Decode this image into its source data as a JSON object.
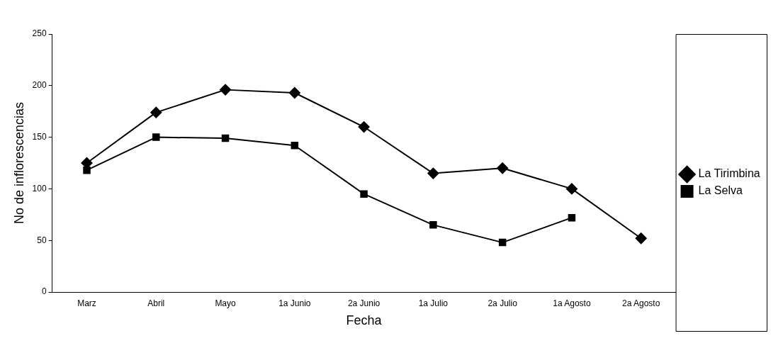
{
  "chart_data": {
    "type": "line",
    "xlabel": "Fecha",
    "ylabel": "No de inflorescencias",
    "categories": [
      "Marz",
      "Abril",
      "Mayo",
      "1a Junio",
      "2a Junio",
      "1a Julio",
      "2a Julio",
      "1a Agosto",
      "2a Agosto"
    ],
    "series": [
      {
        "name": "La Tirimbina",
        "color": "#000000",
        "marker": "diamond",
        "values": [
          125,
          174,
          196,
          193,
          160,
          115,
          120,
          100,
          52
        ]
      },
      {
        "name": "La Selva",
        "color": "#000000",
        "marker": "square",
        "values": [
          118,
          150,
          149,
          142,
          95,
          65,
          48,
          72,
          null
        ]
      }
    ],
    "ylim": [
      0,
      250
    ],
    "yticks": [
      0,
      50,
      100,
      150,
      200,
      250
    ],
    "grid": false,
    "legend": "right",
    "line_style": "solid"
  }
}
